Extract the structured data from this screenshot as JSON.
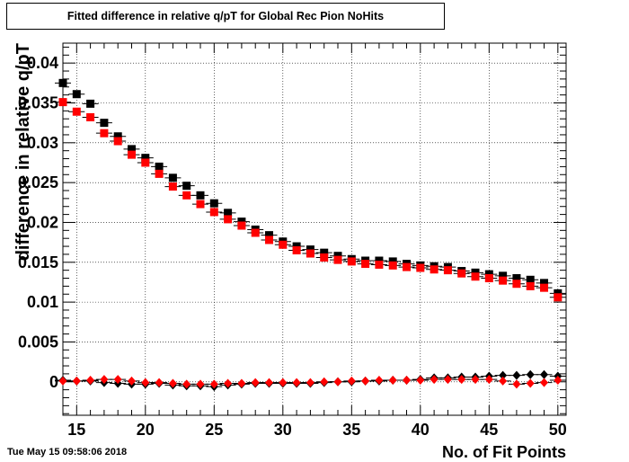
{
  "chart_data": {
    "type": "scatter",
    "title": "Fitted difference in relative q/pT for Global Rec Pion NoHits",
    "xlabel": "No. of Fit Points",
    "ylabel": "difference in relative q/pT",
    "xlim": [
      14,
      50.6
    ],
    "ylim": [
      -0.0042,
      0.0425
    ],
    "xticks": [
      15,
      20,
      25,
      30,
      35,
      40,
      45,
      50
    ],
    "yticks": [
      0,
      0.005,
      0.01,
      0.015,
      0.02,
      0.025,
      0.03,
      0.035,
      0.04
    ],
    "ytick_labels": [
      "0",
      "0.005",
      "0.01",
      "0.015",
      "0.02",
      "0.025",
      "0.03",
      "0.035",
      "0.04"
    ],
    "grid": true,
    "series": [
      {
        "marker": "square",
        "color": "#000000",
        "x": [
          14,
          15,
          16,
          17,
          18,
          19,
          20,
          21,
          22,
          23,
          24,
          25,
          26,
          27,
          28,
          29,
          30,
          31,
          32,
          33,
          34,
          35,
          36,
          37,
          38,
          39,
          40,
          41,
          42,
          43,
          44,
          45,
          46,
          47,
          48,
          49,
          50
        ],
        "y": [
          0.0375,
          0.0361,
          0.0349,
          0.0325,
          0.0308,
          0.0292,
          0.0281,
          0.027,
          0.0256,
          0.0246,
          0.0234,
          0.0224,
          0.0212,
          0.0201,
          0.0191,
          0.0184,
          0.0176,
          0.017,
          0.0166,
          0.0162,
          0.0158,
          0.0154,
          0.0152,
          0.0152,
          0.0151,
          0.0148,
          0.0146,
          0.0145,
          0.0144,
          0.0139,
          0.0137,
          0.0135,
          0.0133,
          0.013,
          0.0128,
          0.0124,
          0.0111
        ]
      },
      {
        "marker": "square",
        "color": "#ff0000",
        "x": [
          14,
          15,
          16,
          17,
          18,
          19,
          20,
          21,
          22,
          23,
          24,
          25,
          26,
          27,
          28,
          29,
          30,
          31,
          32,
          33,
          34,
          35,
          36,
          37,
          38,
          39,
          40,
          41,
          42,
          43,
          44,
          45,
          46,
          47,
          48,
          49,
          50
        ],
        "y": [
          0.0351,
          0.0339,
          0.0332,
          0.0312,
          0.0302,
          0.0285,
          0.0275,
          0.0261,
          0.0245,
          0.0234,
          0.0223,
          0.0213,
          0.0204,
          0.0196,
          0.0187,
          0.0178,
          0.0172,
          0.0165,
          0.0161,
          0.0156,
          0.0153,
          0.0151,
          0.0148,
          0.0147,
          0.0146,
          0.0144,
          0.0143,
          0.0141,
          0.014,
          0.0136,
          0.0132,
          0.013,
          0.0127,
          0.0123,
          0.012,
          0.0118,
          0.0106
        ]
      },
      {
        "marker": "diamond",
        "color": "#000000",
        "x": [
          14,
          15,
          16,
          17,
          18,
          19,
          20,
          21,
          22,
          23,
          24,
          25,
          26,
          27,
          28,
          29,
          30,
          31,
          32,
          33,
          34,
          35,
          36,
          37,
          38,
          39,
          40,
          41,
          42,
          43,
          44,
          45,
          46,
          47,
          48,
          49,
          50
        ],
        "y": [
          0.0002,
          0.0001,
          0.0001,
          -0.0001,
          -0.0002,
          -0.0003,
          -0.0003,
          -0.0002,
          -0.0004,
          -0.0005,
          -0.0005,
          -0.0006,
          -0.0004,
          -0.0003,
          -0.0002,
          -0.0002,
          -0.0002,
          -0.0002,
          -0.0002,
          -0.0001,
          0.0,
          0.0,
          0.0001,
          0.0001,
          0.0002,
          0.0002,
          0.0003,
          0.0005,
          0.0005,
          0.0006,
          0.0006,
          0.0007,
          0.0008,
          0.0008,
          0.0009,
          0.0009,
          0.0007
        ]
      },
      {
        "marker": "diamond",
        "color": "#ff0000",
        "x": [
          14,
          15,
          16,
          17,
          18,
          19,
          20,
          21,
          22,
          23,
          24,
          25,
          26,
          27,
          28,
          29,
          30,
          31,
          32,
          33,
          34,
          35,
          36,
          37,
          38,
          39,
          40,
          41,
          42,
          43,
          44,
          45,
          46,
          47,
          48,
          49,
          50
        ],
        "y": [
          0.0001,
          0.0001,
          0.0002,
          0.0003,
          0.0003,
          0.0001,
          -0.0001,
          -0.0001,
          -0.0002,
          -0.0003,
          -0.0003,
          -0.0003,
          -0.0002,
          -0.0002,
          -0.0001,
          -0.0001,
          -0.0001,
          -0.0001,
          -0.0001,
          0.0,
          0.0,
          0.0001,
          0.0001,
          0.0002,
          0.0002,
          0.0002,
          0.0002,
          0.0003,
          0.0003,
          0.0003,
          0.0003,
          0.0003,
          0.0001,
          -0.0003,
          -0.0002,
          -0.0001,
          0.0002
        ]
      }
    ]
  },
  "timestamp": "Tue May 15 09:58:06 2018"
}
